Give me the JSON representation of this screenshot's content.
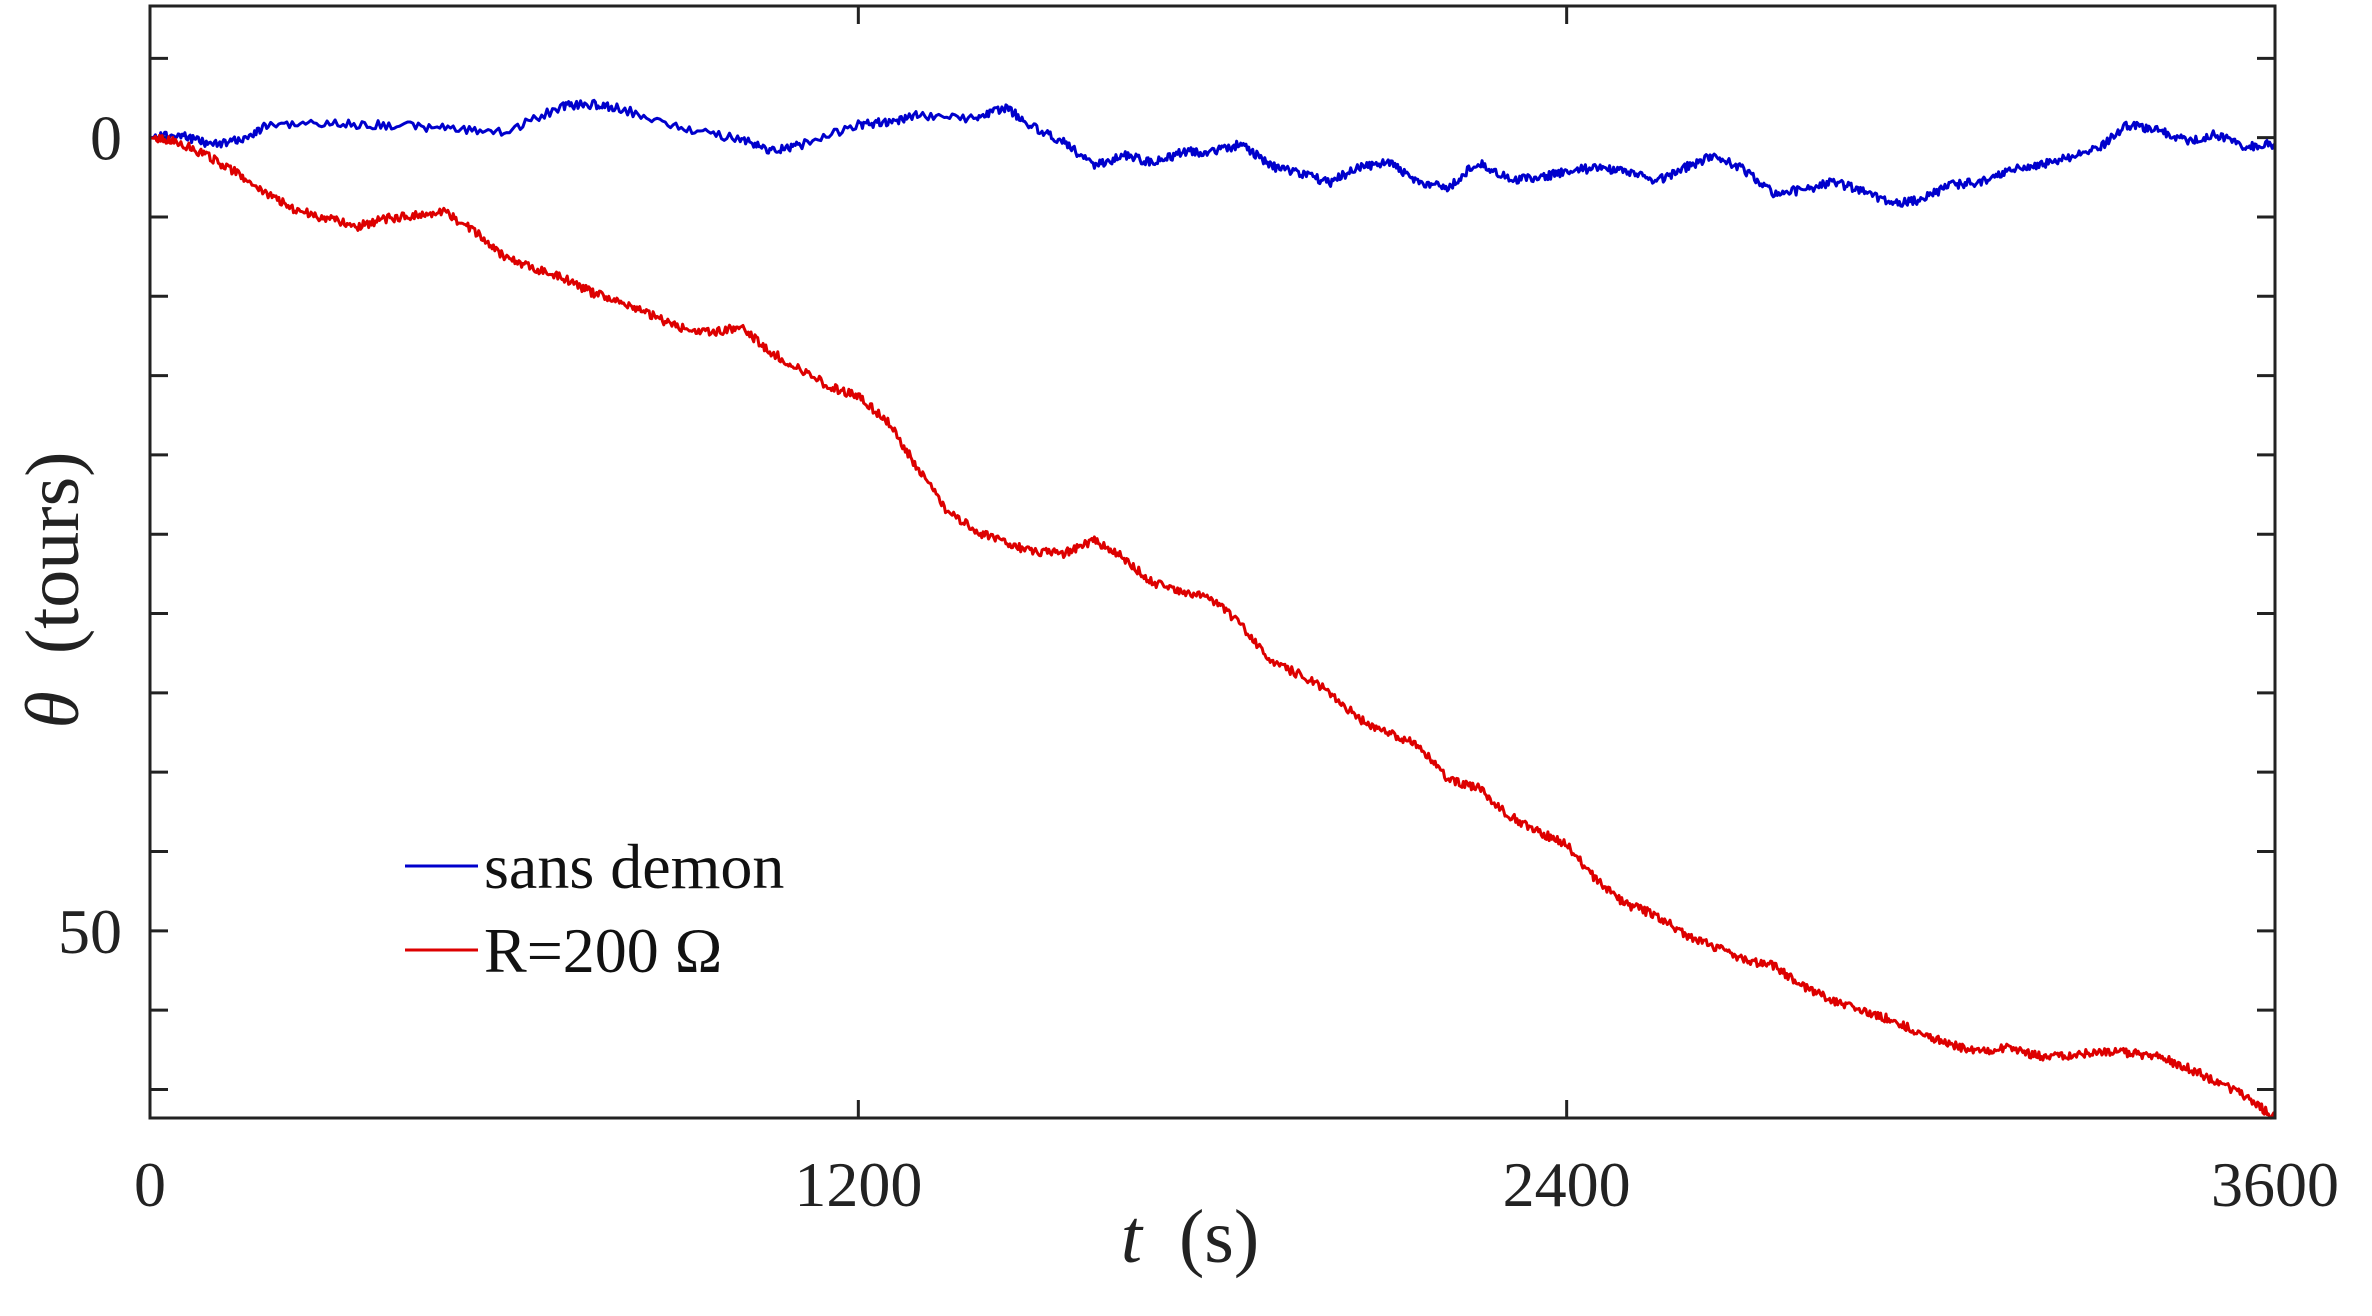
{
  "chart_data": {
    "type": "line",
    "xlabel": "t (s)",
    "xlabel_var": "t",
    "xlabel_unit": "(s)",
    "ylabel": "θ (tours)",
    "ylabel_var": "θ",
    "ylabel_unit": "(tours)",
    "xlim": [
      0,
      3600
    ],
    "ylim": [
      61.8,
      -8.3
    ],
    "y_reversed": true,
    "xticks": [
      0,
      1200,
      2400,
      3600
    ],
    "xtick_labels": [
      "0",
      "1200",
      "2400",
      "3600"
    ],
    "yticks": [
      -5,
      0,
      5,
      10,
      15,
      20,
      25,
      30,
      35,
      40,
      45,
      50,
      55,
      60
    ],
    "ytick_labels": [
      "",
      "0",
      "",
      "",
      "",
      "",
      "",
      "",
      "",
      "",
      "",
      "50",
      "",
      ""
    ],
    "grid": false,
    "legend_position": "bottom-left",
    "series": [
      {
        "name": "sans demon",
        "color": "#0000cc",
        "x": [
          0,
          50,
          100,
          150,
          200,
          300,
          400,
          500,
          600,
          700,
          750,
          800,
          900,
          1000,
          1050,
          1100,
          1200,
          1250,
          1300,
          1400,
          1450,
          1500,
          1550,
          1600,
          1650,
          1700,
          1750,
          1800,
          1850,
          1900,
          1950,
          2000,
          2050,
          2100,
          2150,
          2200,
          2250,
          2300,
          2350,
          2400,
          2450,
          2500,
          2550,
          2600,
          2650,
          2700,
          2750,
          2800,
          2850,
          2900,
          2950,
          3000,
          3050,
          3100,
          3150,
          3200,
          3250,
          3300,
          3350,
          3400,
          3450,
          3500,
          3550,
          3600
        ],
        "y": [
          0.0,
          -0.2,
          0.4,
          0.2,
          -0.8,
          -0.9,
          -0.8,
          -0.6,
          -0.3,
          -2.0,
          -2.1,
          -1.8,
          -0.6,
          0.1,
          0.8,
          0.5,
          -0.8,
          -1.0,
          -1.4,
          -1.2,
          -1.9,
          -0.6,
          0.3,
          1.8,
          1.1,
          1.6,
          0.9,
          0.9,
          0.4,
          1.8,
          2.3,
          2.8,
          1.8,
          1.6,
          2.8,
          3.2,
          1.5,
          2.6,
          2.6,
          2.1,
          1.9,
          2.1,
          2.8,
          1.9,
          1.1,
          2.0,
          3.5,
          3.3,
          2.8,
          3.3,
          4.2,
          3.9,
          3.0,
          2.8,
          2.0,
          1.7,
          1.3,
          0.7,
          -0.8,
          -0.5,
          0.2,
          -0.2,
          0.6,
          0.4
        ]
      },
      {
        "name": "R=200 Ω",
        "color": "#dd0000",
        "x": [
          0,
          50,
          100,
          150,
          200,
          250,
          300,
          350,
          400,
          450,
          500,
          550,
          600,
          650,
          700,
          750,
          800,
          850,
          900,
          950,
          1000,
          1050,
          1100,
          1150,
          1200,
          1250,
          1300,
          1350,
          1400,
          1450,
          1500,
          1550,
          1600,
          1650,
          1700,
          1750,
          1800,
          1850,
          1900,
          1950,
          2000,
          2050,
          2100,
          2150,
          2200,
          2250,
          2300,
          2350,
          2400,
          2450,
          2500,
          2550,
          2600,
          2650,
          2700,
          2750,
          2800,
          2850,
          2900,
          2950,
          3000,
          3050,
          3100,
          3150,
          3200,
          3250,
          3300,
          3350,
          3400,
          3450,
          3500,
          3550,
          3600
        ],
        "y": [
          0.0,
          0.3,
          1.2,
          2.3,
          3.6,
          4.6,
          5.1,
          5.6,
          5.1,
          4.9,
          4.7,
          5.9,
          7.5,
          8.2,
          8.8,
          9.8,
          10.3,
          11.2,
          12.0,
          12.3,
          11.9,
          13.5,
          14.5,
          15.7,
          16.3,
          17.9,
          20.8,
          23.5,
          24.8,
          25.6,
          26.1,
          26.2,
          25.4,
          26.5,
          28.1,
          28.6,
          29.1,
          30.8,
          33.0,
          33.9,
          35.0,
          36.7,
          37.5,
          38.3,
          40.5,
          41.0,
          42.7,
          43.7,
          44.6,
          46.8,
          48.3,
          49.0,
          50.2,
          51.0,
          51.8,
          52.2,
          53.5,
          54.4,
          55.1,
          55.6,
          56.5,
          57.2,
          57.6,
          57.4,
          57.9,
          57.9,
          57.6,
          57.7,
          57.9,
          58.6,
          59.5,
          60.4,
          61.8
        ]
      }
    ]
  }
}
